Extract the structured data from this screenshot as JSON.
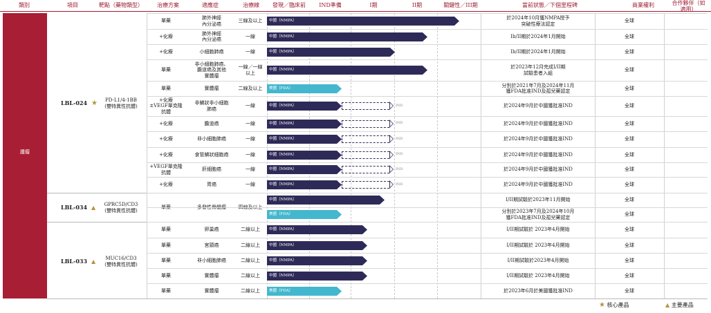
{
  "headers": {
    "category": "類別",
    "project": "項目",
    "target": "靶點（藥物類型）",
    "regimen": "治療方案",
    "indication": "適應症",
    "line": "治療線",
    "discovery": "發現／臨床前",
    "ind": "IND準備",
    "phase1": "I期",
    "phase2": "II期",
    "pivotal": "關鍵性／III期",
    "status": "當前狀態／下個里程碑",
    "rights": "商業權利",
    "partner": "合作夥伴（如適用）"
  },
  "category_label": "腫瘤",
  "projects": [
    {
      "name": "LBL-024",
      "marker": "★",
      "target_l1": "PD-L1/4-1BB",
      "target_l2": "(雙特異性抗體)"
    },
    {
      "name": "LBL-034",
      "marker": "▲",
      "target_l1": "GPRC5D/CD3",
      "target_l2": "(雙特異性抗體)"
    },
    {
      "name": "LBL-033",
      "marker": "▲",
      "target_l1": "MUC16/CD3",
      "target_l2": "(雙特異性抗體)"
    }
  ],
  "lbl034_regimen": "單藥",
  "lbl034_indication": "多發性骨髓瘤",
  "lbl034_line": "四線及以上",
  "rows": [
    {
      "regimen": "單藥",
      "indication": "肺外神經\n內分泌癌",
      "line": "三線及以上",
      "region": "中國（NMPA）",
      "status": "於2024年10月獲NMPA授予\n突破性療法認定",
      "rights": "全球",
      "progress": 0.9
    },
    {
      "regimen": "+化療",
      "indication": "肺外神經\n內分泌癌",
      "line": "一線",
      "region": "中國（NMPA）",
      "status": "Ib/II期於2024年1月開始",
      "rights": "全球",
      "progress": 0.75
    },
    {
      "regimen": "+化療",
      "indication": "小細胞肺癌",
      "line": "一線",
      "region": "中國（NMPA）",
      "status": "Ib/II期於2024年1月開始",
      "rights": "全球",
      "progress": 0.6
    },
    {
      "regimen": "單藥",
      "indication": "非小細胞肺癌、\n膽道癌及其他\n實體瘤",
      "line": "一線／一線\n以上",
      "region": "中國（NMPA）",
      "status": "於2023年12月完成I/II期\n試驗患者入組",
      "rights": "全球",
      "progress": 0.75
    },
    {
      "regimen": "單藥",
      "indication": "實體瘤",
      "line": "二線及以上",
      "region": "美國（FDA）",
      "status": "分別於2021年7月及2024年11月\n獲FDA批准IND及孤兒藥認定",
      "rights": "全球",
      "progress": 0.35
    },
    {
      "regimen": "+化療\n±VEGF單克隆\n抗體",
      "indication": "非鱗狀非小細胞\n肺癌",
      "line": "一線",
      "region": "中國（NMPA）",
      "status": "於2024年9月於中國獲批准IND",
      "rights": "全球",
      "progress": 0.35
    },
    {
      "regimen": "+化療",
      "indication": "膽道癌",
      "line": "一線",
      "region": "中國（NMPA）",
      "status": "於2024年9月於中國獲批准IND",
      "rights": "全球",
      "progress": 0.35
    },
    {
      "regimen": "+化療",
      "indication": "非小細胞肺癌",
      "line": "一線",
      "region": "中國（NMPA）",
      "status": "於2024年9月於中國獲批准IND",
      "rights": "全球",
      "progress": 0.35
    },
    {
      "regimen": "+化療",
      "indication": "食管鱗狀細胞癌",
      "line": "一線",
      "region": "中國（NMPA）",
      "status": "於2024年9月於中國獲批准IND",
      "rights": "全球",
      "progress": 0.35
    },
    {
      "regimen": "+VEGF單克隆\n抗體",
      "indication": "肝細胞癌",
      "line": "一線",
      "region": "中國（NMPA）",
      "status": "於2024年9月於中國獲批准IND",
      "rights": "全球",
      "progress": 0.35
    },
    {
      "regimen": "+化療",
      "indication": "胃癌",
      "line": "一線",
      "region": "中國（NMPA）",
      "status": "於2024年9月於中國獲批准IND",
      "rights": "全球",
      "progress": 0.35
    },
    {
      "regimen": "",
      "indication": "",
      "line": "",
      "region": "中國（NMPA）",
      "status": "I/II期試驗於2023年11月開始",
      "rights": "全球",
      "progress": 0.55
    },
    {
      "regimen": "",
      "indication": "",
      "line": "",
      "region": "美國（FDA）",
      "status": "分別於2023年7月及2024年10月\n獲FDA批准IND及孤兒藥認定",
      "rights": "全球",
      "progress": 0.35
    },
    {
      "regimen": "單藥",
      "indication": "卵巢癌",
      "line": "二線以上",
      "region": "中國（NMPA）",
      "status": "I/II期試驗於 2023年4月開始",
      "rights": "全球",
      "progress": 0.47
    },
    {
      "regimen": "單藥",
      "indication": "宮頸癌",
      "line": "二線以上",
      "region": "中國（NMPA）",
      "status": "I/II期試驗於 2023年4月開始",
      "rights": "全球",
      "progress": 0.47
    },
    {
      "regimen": "單藥",
      "indication": "非小細胞肺癌",
      "line": "二線以上",
      "region": "中國（NMPA）",
      "status": "I/II期試驗於2023年4月開始",
      "rights": "全球",
      "progress": 0.47
    },
    {
      "regimen": "單藥",
      "indication": "實體瘤",
      "line": "二線以上",
      "region": "中國（NMPA）",
      "status": "I/II期試驗於 2023年4月開始",
      "rights": "全球",
      "progress": 0.47
    },
    {
      "regimen": "單藥",
      "indication": "實體瘤",
      "line": "二線以上",
      "region": "美國（FDA）",
      "status": "於2023年6月於美國獲批准IND",
      "rights": "全球",
      "progress": 0.35
    }
  ],
  "planned_tag": "IND",
  "legend": {
    "core_marker": "★",
    "core": "核心產品",
    "key_marker": "▲",
    "key": "主要產品"
  },
  "colors": {
    "brand": "#a81e35",
    "china_bar": "#2e2a58",
    "us_bar": "#43b7cd",
    "gold": "#b8913b"
  }
}
